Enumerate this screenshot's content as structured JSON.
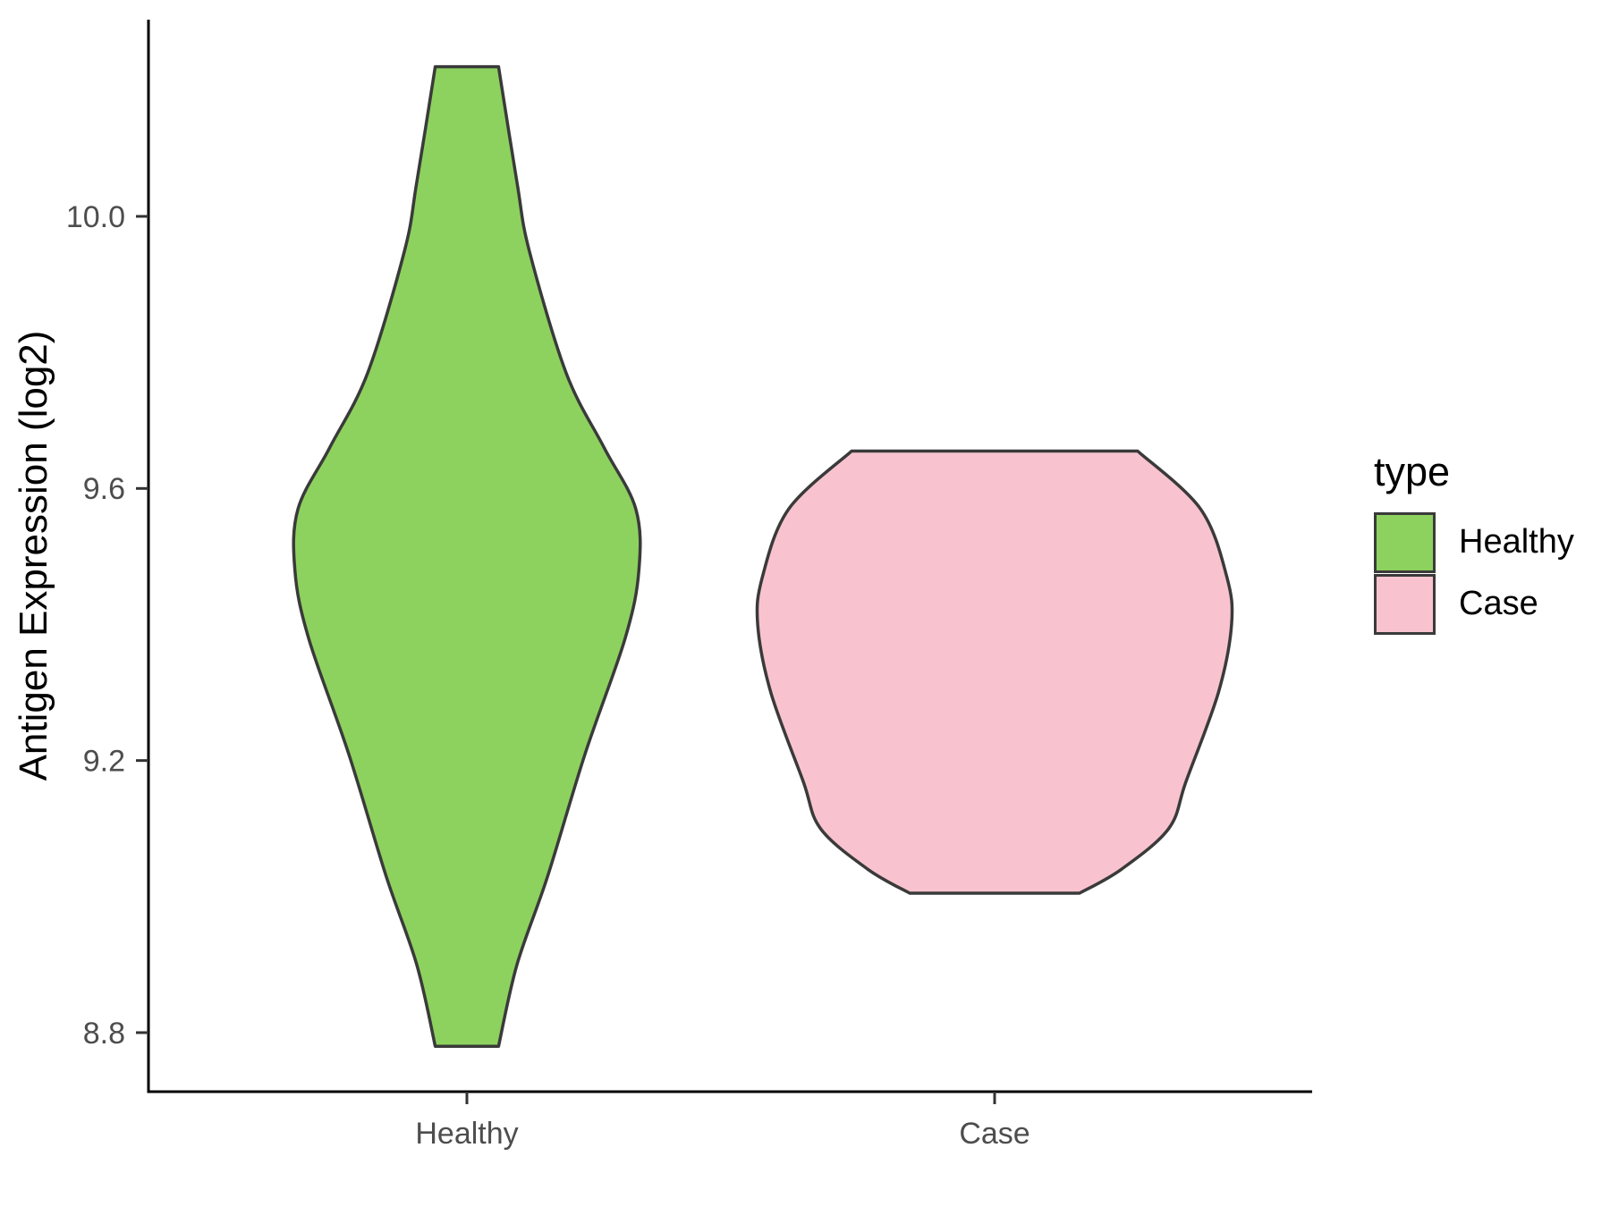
{
  "figure": {
    "background": "#FFFFFF",
    "axis_line_color": "#000000",
    "tick_color": "#333333",
    "tick_label_color": "#4D4D4D",
    "axis_title_color": "#000000"
  },
  "chart_data": {
    "type": "violin",
    "title": "",
    "xlabel": "",
    "ylabel": "Antigen Expression (log2)",
    "categories": [
      "Healthy",
      "Case"
    ],
    "y_axis": {
      "ticks": [
        {
          "value": 8.8,
          "label": "8.8"
        },
        {
          "value": 9.2,
          "label": "9.2"
        },
        {
          "value": 9.6,
          "label": "9.6"
        },
        {
          "value": 10.0,
          "label": "10.0"
        }
      ],
      "range_shown": [
        8.71,
        10.29
      ],
      "grid": false
    },
    "series": [
      {
        "name": "Healthy",
        "fill": "#8DD25E",
        "outline": "#3A3A3A",
        "value_range": [
          8.78,
          10.22
        ],
        "peak_density_value": 9.5,
        "max_halfwidth_units": 0.326,
        "profile": [
          {
            "v": 10.22,
            "w": 0.06
          },
          {
            "v": 10.05,
            "w": 0.095
          },
          {
            "v": 9.95,
            "w": 0.118
          },
          {
            "v": 9.77,
            "w": 0.188
          },
          {
            "v": 9.66,
            "w": 0.26
          },
          {
            "v": 9.57,
            "w": 0.32
          },
          {
            "v": 9.48,
            "w": 0.326
          },
          {
            "v": 9.38,
            "w": 0.3
          },
          {
            "v": 9.21,
            "w": 0.224
          },
          {
            "v": 9.03,
            "w": 0.153
          },
          {
            "v": 8.9,
            "w": 0.095
          },
          {
            "v": 8.78,
            "w": 0.06
          }
        ]
      },
      {
        "name": "Case",
        "fill": "#F8C3CF",
        "outline": "#3A3A3A",
        "value_range": [
          9.0,
          9.66
        ],
        "peak_density_value": 9.4,
        "max_halfwidth_units": 0.449,
        "profile": [
          {
            "v": 9.655,
            "w": 0.271
          },
          {
            "v": 9.57,
            "w": 0.39
          },
          {
            "v": 9.47,
            "w": 0.44
          },
          {
            "v": 9.4,
            "w": 0.449
          },
          {
            "v": 9.3,
            "w": 0.424
          },
          {
            "v": 9.17,
            "w": 0.363
          },
          {
            "v": 9.1,
            "w": 0.33
          },
          {
            "v": 9.04,
            "w": 0.24
          },
          {
            "v": 9.005,
            "w": 0.161
          }
        ]
      }
    ],
    "legend_position": "right"
  },
  "legend": {
    "title": "type",
    "items": [
      {
        "label": "Healthy",
        "color": "#8DD25E"
      },
      {
        "label": "Case",
        "color": "#F8C3CF"
      }
    ]
  }
}
